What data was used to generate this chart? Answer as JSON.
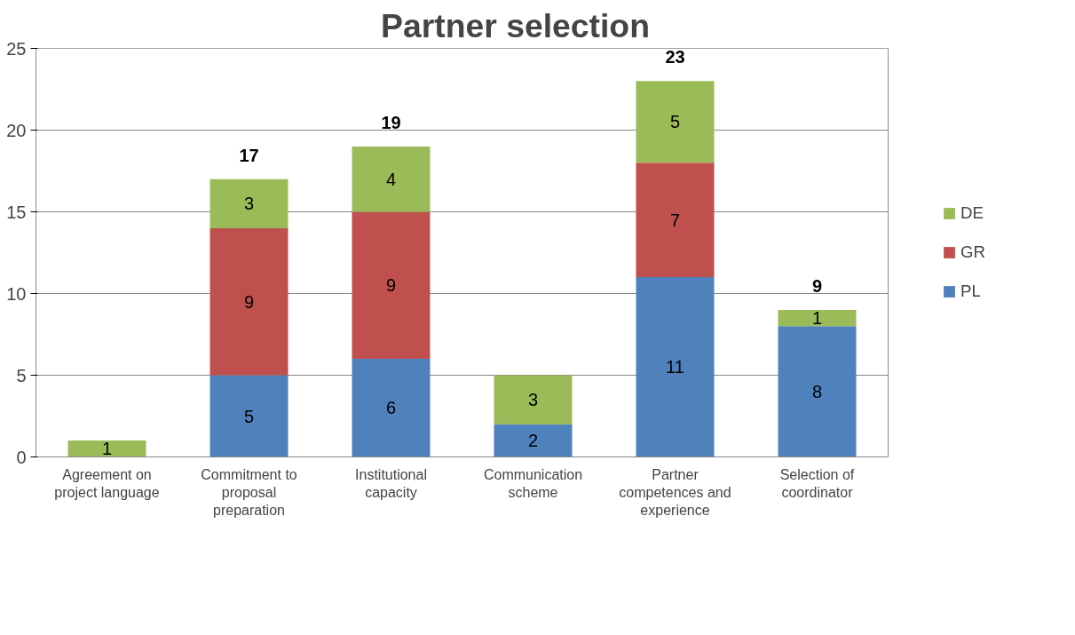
{
  "chart_data": {
    "type": "bar",
    "title": "Partner selection",
    "stacked": true,
    "categories": [
      "Agreement on project language",
      "Commitment to proposal preparation",
      "Institutional capacity",
      "Communication scheme",
      "Partner competences and experience",
      "Selection of coordinator"
    ],
    "series": [
      {
        "name": "PL",
        "color": "#4f81bd",
        "values": [
          null,
          5,
          6,
          2,
          11,
          8
        ]
      },
      {
        "name": "GR",
        "color": "#c0504d",
        "values": [
          null,
          9,
          9,
          null,
          7,
          null
        ]
      },
      {
        "name": "DE",
        "color": "#9bbb59",
        "values": [
          1,
          3,
          4,
          3,
          5,
          1
        ]
      }
    ],
    "totals": [
      null,
      "17",
      "19",
      null,
      "23",
      "9"
    ],
    "data_labels": true,
    "ylim": [
      0,
      25
    ],
    "yticks": [
      0,
      5,
      10,
      15,
      20,
      25
    ],
    "grid": "y",
    "legend": "right"
  }
}
